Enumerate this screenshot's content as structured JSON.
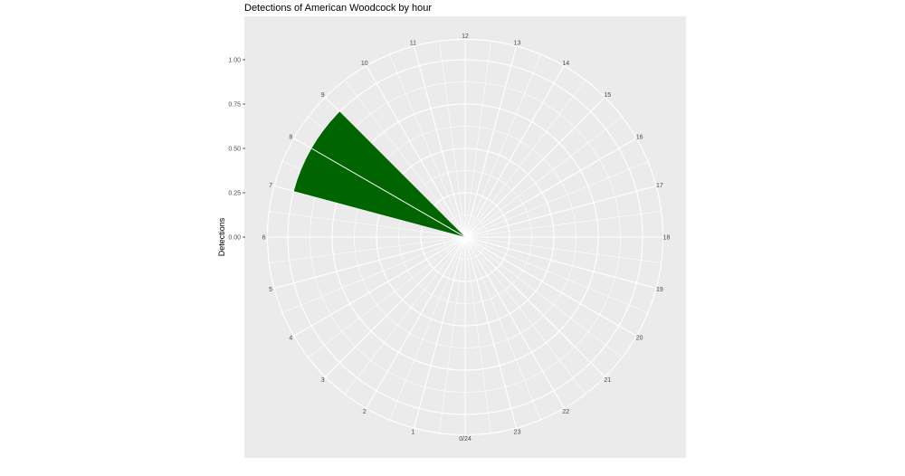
{
  "chart_data": {
    "type": "bar",
    "coordinate_system": "polar",
    "title": "Detections of American Woodcock by hour",
    "xlabel": "",
    "ylabel": "Detections",
    "x": [
      7,
      8
    ],
    "values": [
      1.0,
      1.0
    ],
    "xlim": [
      0,
      24
    ],
    "ylim": [
      0,
      1.0
    ],
    "y_ticks": [
      "0.00",
      "0.25",
      "0.50",
      "0.75",
      "1.00"
    ],
    "hour_labels": [
      "0/24",
      "1",
      "2",
      "3",
      "4",
      "5",
      "6",
      "7",
      "8",
      "9",
      "10",
      "11",
      "12",
      "13",
      "14",
      "15",
      "16",
      "17",
      "18",
      "19",
      "20",
      "21",
      "22",
      "23"
    ],
    "bar_color": "#006400",
    "panel_background": "#ebebeb",
    "grid": true,
    "legend": "none"
  }
}
